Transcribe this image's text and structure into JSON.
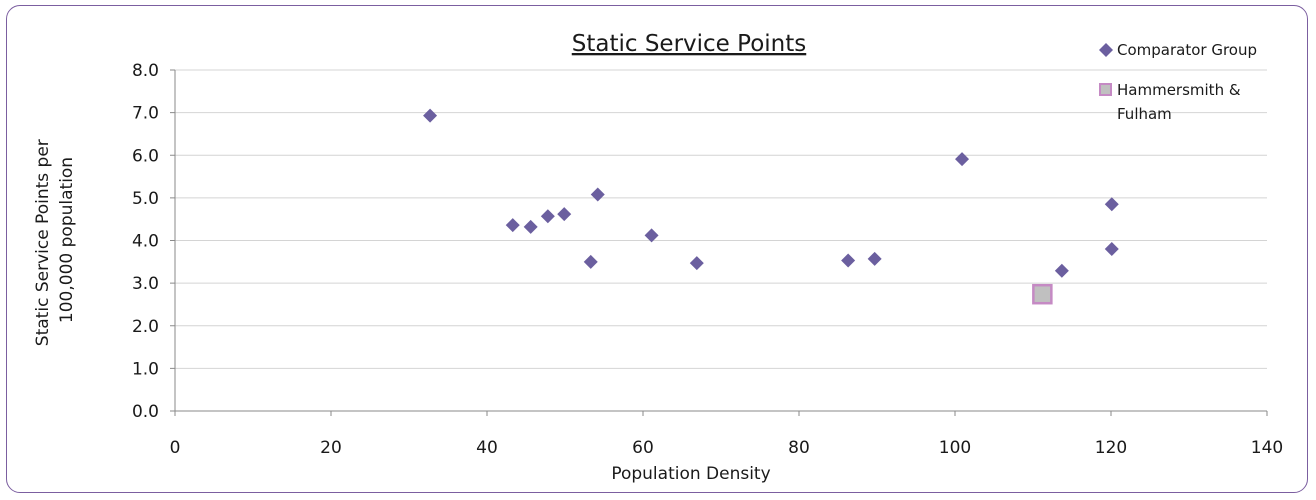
{
  "chart_data": {
    "type": "scatter",
    "title": "Static Service Points",
    "xlabel": "Population Density",
    "ylabel": [
      "Static Service Points per",
      "100,000 population"
    ],
    "xlim": [
      0,
      140
    ],
    "ylim": [
      0,
      8
    ],
    "x_ticks": [
      "0",
      "20",
      "40",
      "60",
      "80",
      "100",
      "120",
      "140"
    ],
    "y_ticks": [
      "0.0",
      "1.0",
      "2.0",
      "3.0",
      "4.0",
      "5.0",
      "6.0",
      "7.0",
      "8.0"
    ],
    "grid": "horizontal",
    "legend_position": "top-right",
    "series": [
      {
        "name": "Comparator Group",
        "marker": "diamond",
        "color": "#6b5f9f",
        "points": [
          [
            32.7,
            6.93
          ],
          [
            43.3,
            4.36
          ],
          [
            45.6,
            4.32
          ],
          [
            47.8,
            4.57
          ],
          [
            49.9,
            4.62
          ],
          [
            53.3,
            3.5
          ],
          [
            54.2,
            5.08
          ],
          [
            61.1,
            4.12
          ],
          [
            66.9,
            3.47
          ],
          [
            86.3,
            3.53
          ],
          [
            89.7,
            3.57
          ],
          [
            100.9,
            5.91
          ],
          [
            113.7,
            3.29
          ],
          [
            120.1,
            3.8
          ],
          [
            120.1,
            4.85
          ]
        ]
      },
      {
        "name": "Hammersmith & Fulham",
        "legend_lines": [
          "Hammersmith &",
          "Fulham"
        ],
        "marker": "square",
        "color": "#c0c0c0",
        "stroke": "#c58ac4",
        "points": [
          [
            111.2,
            2.74
          ]
        ]
      }
    ]
  }
}
